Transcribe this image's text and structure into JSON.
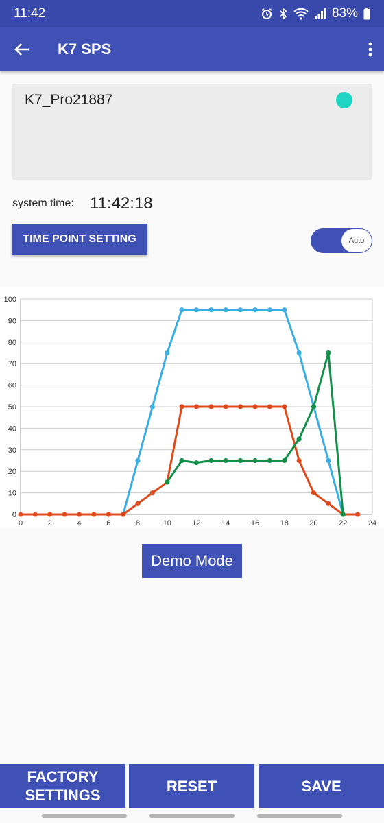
{
  "status": {
    "time": "11:42",
    "battery": "83%"
  },
  "app_bar": {
    "title": "K7 SPS"
  },
  "device": {
    "name": "K7_Pro21887",
    "dot_color": "#1ed6c3"
  },
  "system_time": {
    "label": "system time:",
    "value": "11:42:18"
  },
  "time_point_button": "TIME POINT SETTING",
  "toggle": {
    "label": "Auto",
    "on": true
  },
  "demo_button": "Demo Mode",
  "bottom": {
    "factory_line1": "FACTORY",
    "factory_line2": "SETTINGS",
    "reset": "RESET",
    "save": "SAVE"
  },
  "colors": {
    "primary": "#3f51b5",
    "status_bar": "#3949ab"
  },
  "chart_data": {
    "type": "line",
    "xlim": [
      0,
      24
    ],
    "ylim": [
      0,
      100
    ],
    "x_ticks": [
      0,
      2,
      4,
      6,
      8,
      10,
      12,
      14,
      16,
      18,
      20,
      22,
      24
    ],
    "y_ticks": [
      0,
      10,
      20,
      30,
      40,
      50,
      60,
      70,
      80,
      90,
      100
    ],
    "grid": true,
    "series": [
      {
        "color": "#3aaee0",
        "points": [
          [
            7,
            0
          ],
          [
            8,
            25
          ],
          [
            9,
            50
          ],
          [
            10,
            75
          ],
          [
            11,
            95
          ],
          [
            12,
            95
          ],
          [
            13,
            95
          ],
          [
            14,
            95
          ],
          [
            15,
            95
          ],
          [
            16,
            95
          ],
          [
            17,
            95
          ],
          [
            18,
            95
          ],
          [
            19,
            75
          ],
          [
            20,
            50
          ],
          [
            21,
            25
          ],
          [
            22,
            0
          ]
        ]
      },
      {
        "color": "#e0491b",
        "points": [
          [
            0,
            0
          ],
          [
            1,
            0
          ],
          [
            2,
            0
          ],
          [
            3,
            0
          ],
          [
            4,
            0
          ],
          [
            5,
            0
          ],
          [
            6,
            0
          ],
          [
            7,
            0
          ],
          [
            8,
            5
          ],
          [
            9,
            10
          ],
          [
            10,
            15
          ],
          [
            11,
            50
          ],
          [
            12,
            50
          ],
          [
            13,
            50
          ],
          [
            14,
            50
          ],
          [
            15,
            50
          ],
          [
            16,
            50
          ],
          [
            17,
            50
          ],
          [
            18,
            50
          ],
          [
            19,
            25
          ],
          [
            20,
            10
          ],
          [
            21,
            5
          ],
          [
            22,
            0
          ],
          [
            23,
            0
          ]
        ]
      },
      {
        "color": "#12904a",
        "points": [
          [
            10,
            15
          ],
          [
            11,
            25
          ],
          [
            12,
            24
          ],
          [
            13,
            25
          ],
          [
            14,
            25
          ],
          [
            15,
            25
          ],
          [
            16,
            25
          ],
          [
            17,
            25
          ],
          [
            18,
            25
          ],
          [
            19,
            35
          ],
          [
            20,
            50
          ],
          [
            21,
            75
          ],
          [
            22,
            0
          ]
        ]
      }
    ]
  }
}
